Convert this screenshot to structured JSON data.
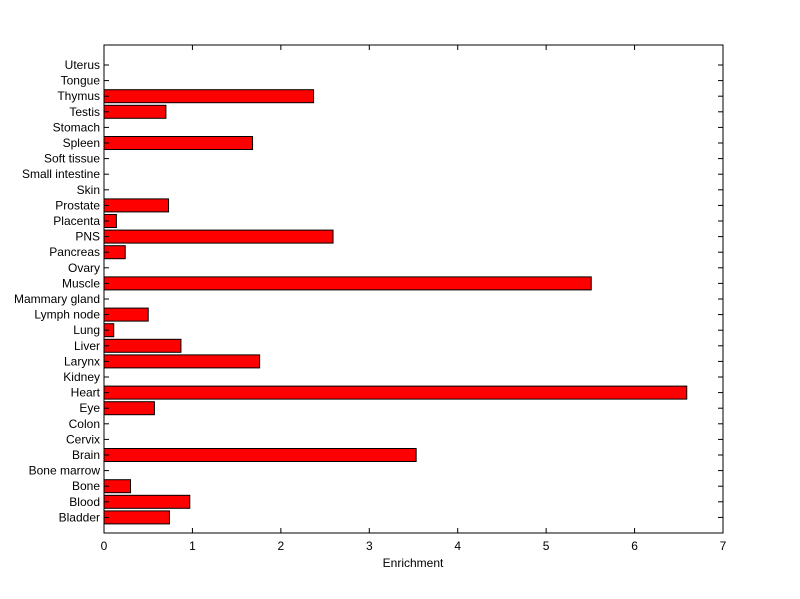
{
  "chart_data": {
    "type": "bar",
    "orientation": "horizontal",
    "title": "",
    "xlabel": "Enrichment",
    "ylabel": "",
    "xlim": [
      0,
      7
    ],
    "xticks": [
      "0",
      "1",
      "2",
      "3",
      "4",
      "5",
      "6",
      "7"
    ],
    "grid": false,
    "legend": "none",
    "bar_color": "#ff0000",
    "bar_edge_color": "#000000",
    "categories": [
      "Bladder",
      "Blood",
      "Bone",
      "Bone marrow",
      "Brain",
      "Cervix",
      "Colon",
      "Eye",
      "Heart",
      "Kidney",
      "Larynx",
      "Liver",
      "Lung",
      "Lymph node",
      "Mammary gland",
      "Muscle",
      "Ovary",
      "Pancreas",
      "PNS",
      "Placenta",
      "Prostate",
      "Skin",
      "Small intestine",
      "Soft tissue",
      "Spleen",
      "Stomach",
      "Testis",
      "Thymus",
      "Tongue",
      "Uterus"
    ],
    "values": [
      0.74,
      0.97,
      0.3,
      0,
      3.53,
      0,
      0,
      0.57,
      6.59,
      0,
      1.76,
      0.87,
      0.11,
      0.5,
      0,
      5.51,
      0,
      0.24,
      2.59,
      0.14,
      0.73,
      0,
      0,
      0,
      1.68,
      0,
      0.7,
      2.37,
      0,
      0
    ]
  }
}
